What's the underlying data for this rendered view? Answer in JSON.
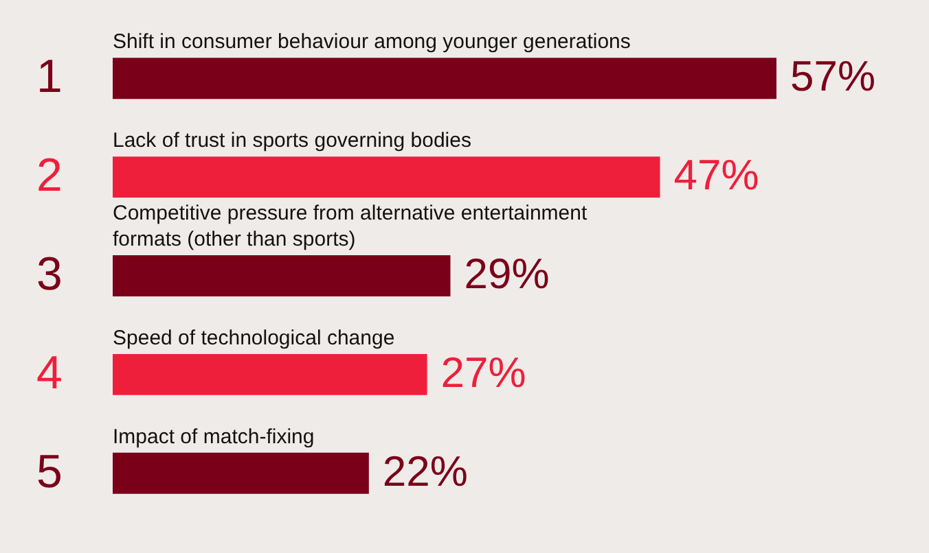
{
  "chart_data": {
    "type": "bar",
    "orientation": "horizontal",
    "categories": [
      "Shift in consumer behaviour among younger generations",
      "Lack of trust in sports governing bodies",
      "Competitive pressure from alternative entertainment formats (other than sports)",
      "Speed of technological change",
      "Impact of match-fixing"
    ],
    "values": [
      57,
      47,
      29,
      27,
      22
    ],
    "colors": [
      "#7a0019",
      "#ee1f3b",
      "#7a0019",
      "#ee1f3b",
      "#7a0019"
    ],
    "value_labels": [
      "57%",
      "47%",
      "29%",
      "27%",
      "22%"
    ],
    "annotations": [
      "1",
      "2",
      "3",
      "4",
      "5"
    ]
  }
}
